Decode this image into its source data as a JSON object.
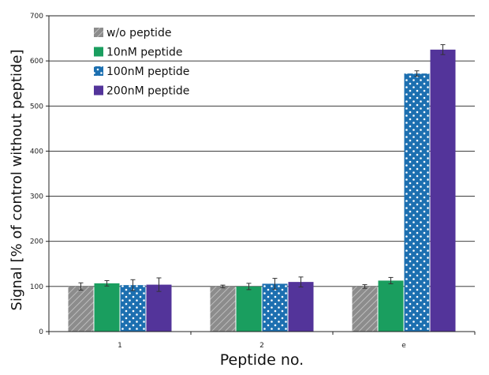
{
  "chart_data": {
    "type": "bar",
    "xlabel": "Peptide no.",
    "ylabel": "Signal [% of control without peptide]",
    "ylim": [
      0,
      700
    ],
    "yticks": [
      0,
      100,
      200,
      300,
      400,
      500,
      600,
      700
    ],
    "grid": true,
    "legend_position": "top-left",
    "categories": [
      "1",
      "2",
      "e"
    ],
    "series": [
      {
        "name": "w/o peptide",
        "values": [
          100,
          100,
          100
        ],
        "errors": [
          8,
          3,
          4
        ],
        "color": "#8c8c8c",
        "pattern": "diagonal-hatch"
      },
      {
        "name": "10nM peptide",
        "values": [
          107,
          100,
          113
        ],
        "errors": [
          6,
          7,
          7
        ],
        "color": "#1a9e5f",
        "pattern": "solid"
      },
      {
        "name": "100nM peptide",
        "values": [
          103,
          106,
          572
        ],
        "errors": [
          12,
          12,
          6
        ],
        "color": "#1c6fb0",
        "pattern": "white-dots"
      },
      {
        "name": "200nM peptide",
        "values": [
          104,
          110,
          625
        ],
        "errors": [
          15,
          11,
          11
        ],
        "color": "#53349a",
        "pattern": "solid"
      }
    ]
  }
}
